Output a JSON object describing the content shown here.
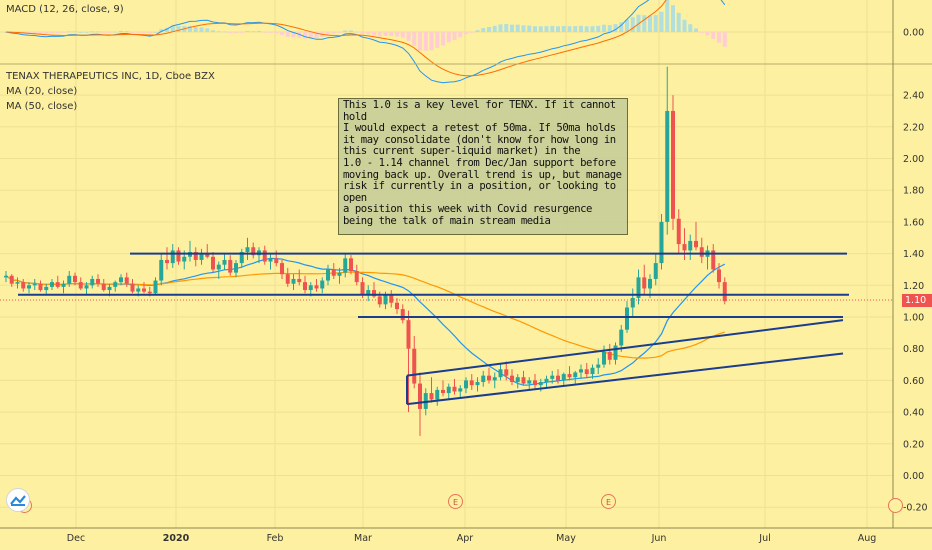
{
  "chart_data": [
    {
      "type": "line",
      "panel": "MACD",
      "title": "MACD (12, 26, close, 9)",
      "ylim": [
        -0.02,
        0.04
      ],
      "yticks": [
        "0.00"
      ],
      "description_series": [
        {
          "name": "MACD",
          "color": "#2196f3"
        },
        {
          "name": "Signal",
          "color": "#ff6d00"
        },
        {
          "name": "Histogram",
          "color": "#26a69a"
        }
      ]
    },
    {
      "type": "candlestick",
      "panel": "price",
      "title": "TENAX THERAPEUTICS INC, 1D, Cboe BZX",
      "series": [
        {
          "name": "MA (20, close)",
          "color": "#2196f3"
        },
        {
          "name": "MA (50, close)",
          "color": "#ff9800"
        }
      ],
      "ylim": [
        -0.3,
        2.6
      ],
      "yticks": [
        "2.40",
        "2.20",
        "2.00",
        "1.80",
        "1.60",
        "1.40",
        "1.20",
        "1.00",
        "0.80",
        "0.60",
        "0.40",
        "0.20",
        "0.00",
        "-0.20"
      ],
      "xticks": [
        "Dec",
        "2020",
        "Feb",
        "Mar",
        "Apr",
        "May",
        "Jun",
        "Jul",
        "Aug"
      ],
      "last_price": "1.10",
      "annotations": [
        {
          "kind": "horizontal",
          "level": 1.4
        },
        {
          "kind": "horizontal",
          "level": 1.14
        },
        {
          "kind": "horizontal",
          "level": 1.0
        },
        {
          "kind": "trendline",
          "from": [
            "Mar",
            0.63
          ],
          "to": [
            "Jul",
            0.98
          ]
        },
        {
          "kind": "trendline",
          "from": [
            "Mar",
            0.45
          ],
          "to": [
            "Aug",
            0.77
          ]
        }
      ],
      "note": "This 1.0 is a key level for TENX. If it cannot hold I would expect a retest of 50ma. If 50ma holds it may consolidate (don't know for how long in this current super-liquid market) in the 1.0 - 1.14 channel from Dec/Jan support before moving back up. Overall trend is up, but manage risk if currently in a position, or looking to open a position this week with Covid resurgence being the talk of main stream media",
      "note_lines": [
        "This 1.0 is a key level for TENX. If it cannot hold",
        "I would expect a retest of 50ma. If 50ma holds",
        "it may consolidate (don't know for how long in",
        "this current super-liquid market) in the",
        "1.0 - 1.14 channel from Dec/Jan support before",
        "moving back up. Overall trend is up, but manage",
        "risk if currently in a position, or looking to open",
        "a position this week with Covid resurgence",
        "being the talk of main stream media"
      ],
      "events": [
        "E",
        "E"
      ],
      "candles": [
        [
          1.25,
          1.29,
          1.22,
          1.26
        ],
        [
          1.26,
          1.27,
          1.19,
          1.21
        ],
        [
          1.21,
          1.25,
          1.18,
          1.22
        ],
        [
          1.22,
          1.24,
          1.16,
          1.18
        ],
        [
          1.18,
          1.22,
          1.15,
          1.2
        ],
        [
          1.2,
          1.24,
          1.17,
          1.21
        ],
        [
          1.21,
          1.23,
          1.16,
          1.17
        ],
        [
          1.17,
          1.21,
          1.14,
          1.19
        ],
        [
          1.19,
          1.24,
          1.17,
          1.22
        ],
        [
          1.22,
          1.26,
          1.18,
          1.19
        ],
        [
          1.19,
          1.23,
          1.15,
          1.21
        ],
        [
          1.21,
          1.29,
          1.19,
          1.26
        ],
        [
          1.26,
          1.28,
          1.2,
          1.22
        ],
        [
          1.22,
          1.25,
          1.17,
          1.18
        ],
        [
          1.18,
          1.22,
          1.14,
          1.2
        ],
        [
          1.2,
          1.26,
          1.18,
          1.24
        ],
        [
          1.24,
          1.27,
          1.19,
          1.21
        ],
        [
          1.21,
          1.24,
          1.16,
          1.17
        ],
        [
          1.17,
          1.21,
          1.13,
          1.19
        ],
        [
          1.19,
          1.23,
          1.16,
          1.22
        ],
        [
          1.22,
          1.27,
          1.2,
          1.25
        ],
        [
          1.25,
          1.28,
          1.19,
          1.21
        ],
        [
          1.21,
          1.24,
          1.15,
          1.16
        ],
        [
          1.16,
          1.2,
          1.13,
          1.18
        ],
        [
          1.18,
          1.22,
          1.15,
          1.16
        ],
        [
          1.16,
          1.19,
          1.13,
          1.15
        ],
        [
          1.15,
          1.25,
          1.14,
          1.23
        ],
        [
          1.23,
          1.4,
          1.2,
          1.36
        ],
        [
          1.36,
          1.44,
          1.3,
          1.34
        ],
        [
          1.34,
          1.46,
          1.31,
          1.42
        ],
        [
          1.42,
          1.44,
          1.33,
          1.35
        ],
        [
          1.35,
          1.42,
          1.3,
          1.38
        ],
        [
          1.38,
          1.48,
          1.35,
          1.41
        ],
        [
          1.41,
          1.44,
          1.32,
          1.36
        ],
        [
          1.36,
          1.43,
          1.33,
          1.4
        ],
        [
          1.4,
          1.46,
          1.37,
          1.38
        ],
        [
          1.38,
          1.41,
          1.28,
          1.3
        ],
        [
          1.3,
          1.35,
          1.24,
          1.33
        ],
        [
          1.33,
          1.4,
          1.3,
          1.36
        ],
        [
          1.36,
          1.39,
          1.26,
          1.28
        ],
        [
          1.28,
          1.36,
          1.25,
          1.34
        ],
        [
          1.34,
          1.43,
          1.31,
          1.41
        ],
        [
          1.41,
          1.5,
          1.36,
          1.44
        ],
        [
          1.44,
          1.47,
          1.37,
          1.39
        ],
        [
          1.39,
          1.44,
          1.34,
          1.42
        ],
        [
          1.42,
          1.45,
          1.33,
          1.35
        ],
        [
          1.35,
          1.4,
          1.3,
          1.37
        ],
        [
          1.37,
          1.42,
          1.32,
          1.34
        ],
        [
          1.34,
          1.36,
          1.24,
          1.27
        ],
        [
          1.27,
          1.31,
          1.19,
          1.21
        ],
        [
          1.21,
          1.27,
          1.17,
          1.24
        ],
        [
          1.24,
          1.3,
          1.2,
          1.22
        ],
        [
          1.22,
          1.26,
          1.15,
          1.17
        ],
        [
          1.17,
          1.22,
          1.13,
          1.2
        ],
        [
          1.2,
          1.24,
          1.16,
          1.18
        ],
        [
          1.18,
          1.25,
          1.15,
          1.23
        ],
        [
          1.23,
          1.33,
          1.2,
          1.3
        ],
        [
          1.3,
          1.34,
          1.24,
          1.26
        ],
        [
          1.26,
          1.31,
          1.21,
          1.28
        ],
        [
          1.28,
          1.4,
          1.25,
          1.37
        ],
        [
          1.37,
          1.39,
          1.27,
          1.29
        ],
        [
          1.29,
          1.33,
          1.2,
          1.22
        ],
        [
          1.22,
          1.25,
          1.12,
          1.14
        ],
        [
          1.14,
          1.2,
          1.1,
          1.17
        ],
        [
          1.17,
          1.22,
          1.12,
          1.13
        ],
        [
          1.13,
          1.16,
          1.06,
          1.08
        ],
        [
          1.08,
          1.16,
          1.05,
          1.14
        ],
        [
          1.14,
          1.17,
          1.06,
          1.09
        ],
        [
          1.09,
          1.12,
          1.02,
          1.05
        ],
        [
          1.05,
          1.08,
          0.96,
          0.98
        ],
        [
          0.98,
          1.04,
          0.4,
          0.8
        ],
        [
          0.8,
          0.88,
          0.55,
          0.58
        ],
        [
          0.58,
          0.65,
          0.25,
          0.42
        ],
        [
          0.42,
          0.55,
          0.38,
          0.52
        ],
        [
          0.52,
          0.62,
          0.46,
          0.48
        ],
        [
          0.48,
          0.56,
          0.44,
          0.54
        ],
        [
          0.54,
          0.6,
          0.5,
          0.52
        ],
        [
          0.52,
          0.58,
          0.48,
          0.56
        ],
        [
          0.56,
          0.61,
          0.51,
          0.53
        ],
        [
          0.53,
          0.57,
          0.49,
          0.55
        ],
        [
          0.55,
          0.62,
          0.52,
          0.6
        ],
        [
          0.6,
          0.64,
          0.54,
          0.57
        ],
        [
          0.57,
          0.62,
          0.53,
          0.59
        ],
        [
          0.59,
          0.66,
          0.56,
          0.63
        ],
        [
          0.63,
          0.68,
          0.58,
          0.6
        ],
        [
          0.6,
          0.65,
          0.55,
          0.62
        ],
        [
          0.62,
          0.7,
          0.6,
          0.67
        ],
        [
          0.67,
          0.72,
          0.6,
          0.63
        ],
        [
          0.63,
          0.67,
          0.57,
          0.59
        ],
        [
          0.59,
          0.64,
          0.55,
          0.62
        ],
        [
          0.62,
          0.66,
          0.57,
          0.58
        ],
        [
          0.58,
          0.62,
          0.54,
          0.6
        ],
        [
          0.6,
          0.64,
          0.55,
          0.57
        ],
        [
          0.57,
          0.61,
          0.53,
          0.59
        ],
        [
          0.59,
          0.63,
          0.55,
          0.61
        ],
        [
          0.61,
          0.66,
          0.58,
          0.63
        ],
        [
          0.63,
          0.67,
          0.58,
          0.6
        ],
        [
          0.6,
          0.65,
          0.57,
          0.64
        ],
        [
          0.64,
          0.69,
          0.6,
          0.62
        ],
        [
          0.62,
          0.66,
          0.58,
          0.65
        ],
        [
          0.65,
          0.7,
          0.61,
          0.67
        ],
        [
          0.67,
          0.71,
          0.62,
          0.64
        ],
        [
          0.64,
          0.7,
          0.61,
          0.68
        ],
        [
          0.68,
          0.74,
          0.64,
          0.7
        ],
        [
          0.7,
          0.82,
          0.68,
          0.78
        ],
        [
          0.78,
          0.83,
          0.7,
          0.73
        ],
        [
          0.73,
          0.84,
          0.7,
          0.82
        ],
        [
          0.82,
          0.95,
          0.78,
          0.92
        ],
        [
          0.92,
          1.1,
          0.9,
          1.06
        ],
        [
          1.06,
          1.18,
          1.0,
          1.12
        ],
        [
          1.12,
          1.3,
          1.08,
          1.25
        ],
        [
          1.25,
          1.33,
          1.14,
          1.18
        ],
        [
          1.18,
          1.27,
          1.12,
          1.24
        ],
        [
          1.24,
          1.4,
          1.2,
          1.34
        ],
        [
          1.34,
          1.65,
          1.3,
          1.6
        ],
        [
          1.6,
          2.58,
          1.52,
          2.3
        ],
        [
          2.3,
          2.4,
          1.55,
          1.62
        ],
        [
          1.62,
          1.68,
          1.4,
          1.46
        ],
        [
          1.46,
          1.56,
          1.36,
          1.42
        ],
        [
          1.42,
          1.52,
          1.36,
          1.48
        ],
        [
          1.48,
          1.6,
          1.42,
          1.44
        ],
        [
          1.44,
          1.5,
          1.34,
          1.38
        ],
        [
          1.38,
          1.45,
          1.3,
          1.42
        ],
        [
          1.42,
          1.46,
          1.28,
          1.3
        ],
        [
          1.3,
          1.34,
          1.18,
          1.22
        ],
        [
          1.22,
          1.25,
          1.08,
          1.1
        ]
      ]
    }
  ],
  "colors": {
    "background": "#fdf0a0",
    "candle_up": "#26a69a",
    "candle_down": "#ef5350",
    "drawing_lines": "#1a3d8f",
    "price_tag": "#ef5350"
  }
}
